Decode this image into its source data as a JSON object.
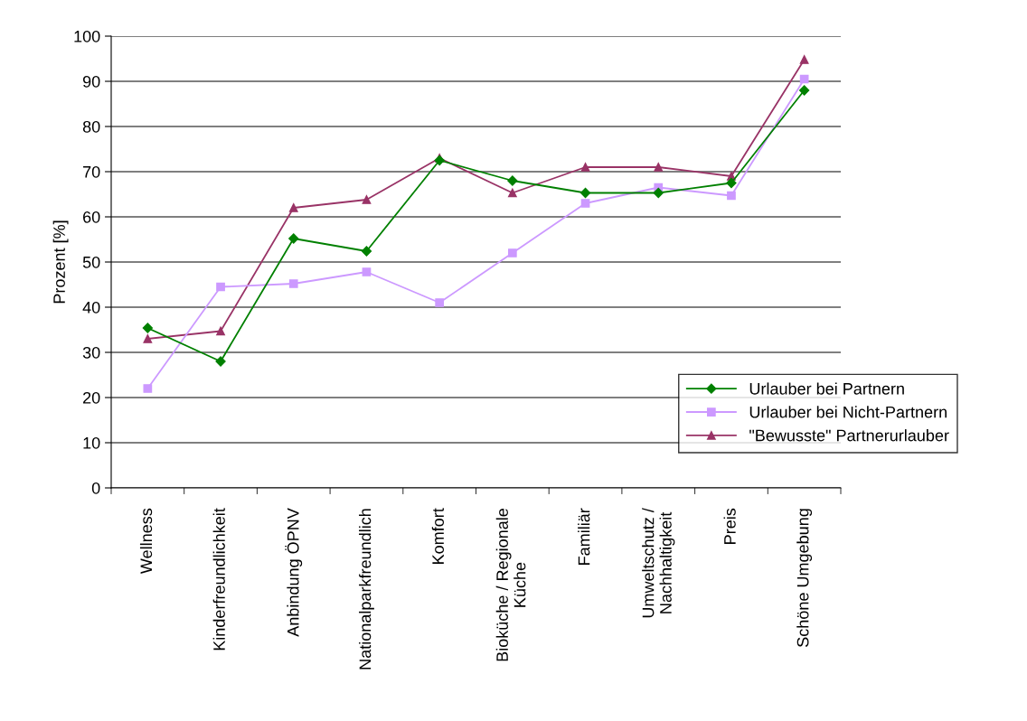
{
  "chart_data": {
    "type": "line",
    "ylabel": "Prozent [%]",
    "categories": [
      "Wellness",
      "Kinderfreundlichkeit",
      "Anbindung ÖPNV",
      "Nationalparkfreundlich",
      "Komfort",
      "Bioküche / Regionale\nKüche",
      "Familiär",
      "Umweltschutz /\nNachhaltigkeit",
      "Preis",
      "Schöne Umgebung"
    ],
    "series": [
      {
        "name": "Urlauber bei Partnern",
        "color": "#008000",
        "marker": "diamond",
        "values": [
          35.4,
          28,
          55.2,
          52.4,
          72.5,
          68,
          65.3,
          65.3,
          67.5,
          88
        ]
      },
      {
        "name": "Urlauber bei Nicht-Partnern",
        "color": "#cc99ff",
        "marker": "square",
        "values": [
          22,
          44.5,
          45.2,
          47.8,
          41,
          52,
          63,
          66.5,
          64.7,
          90.5
        ]
      },
      {
        "name": "\"Bewusste\" Partnerurlauber",
        "color": "#993366",
        "marker": "triangle",
        "values": [
          33,
          34.7,
          62,
          63.8,
          73,
          65.3,
          71,
          71,
          69,
          94.8
        ]
      }
    ],
    "ylim": [
      0,
      100
    ],
    "yticks": [
      0,
      10,
      20,
      30,
      40,
      50,
      60,
      70,
      80,
      90,
      100
    ],
    "grid": "y",
    "legend": "bottom right"
  }
}
